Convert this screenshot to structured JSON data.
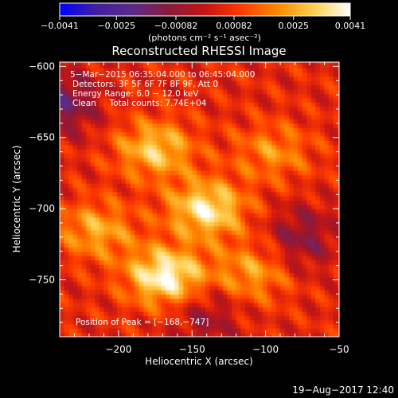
{
  "chart_data": {
    "type": "heatmap",
    "title": "Reconstructed RHESSI Image",
    "xlabel": "Heliocentric X (arcsec)",
    "ylabel": "Heliocentric Y (arcsec)",
    "xlim": [
      -240,
      -50
    ],
    "ylim": [
      -790,
      -597
    ],
    "x_ticks": [
      -200,
      -150,
      -100,
      -50
    ],
    "x_tick_labels": [
      "−200",
      "−150",
      "−100",
      "−50"
    ],
    "y_ticks": [
      -600,
      -650,
      -700,
      -750
    ],
    "y_tick_labels": [
      "−600",
      "−650",
      "−700",
      "−750"
    ],
    "colorbar": {
      "range": [
        -0.0041,
        0.0041
      ],
      "ticks": [
        -0.0041,
        -0.0025,
        -0.00082,
        0.00082,
        0.0025,
        0.0041
      ],
      "tick_labels": [
        "−0.0041",
        "−0.0025",
        "−0.00082",
        "0.00082",
        "0.0025",
        "0.0041"
      ],
      "units": "(photons cm⁻² s⁻¹ asec⁻²)",
      "colormap": [
        "#0000ff",
        "#4020a0",
        "#5a2b8a",
        "#8c1a3a",
        "#c41414",
        "#ff3a00",
        "#ff8800",
        "#ffd050",
        "#ffffff"
      ]
    },
    "annotations": [
      "5−Mar−2015 06:35:04.000 to 06:45:04.000",
      "Detectors: 3F 5F 6F 7F 8F 9F, Att 0",
      "Energy Range: 6.0 − 12.0 keV",
      "Clean     Total counts: 7.74E+04"
    ],
    "peak_label": "Position of Peak = [−168,−747]",
    "peak": [
      -168,
      -747
    ],
    "sources": [
      {
        "x": -168,
        "y": -747,
        "peak": 0.0041
      },
      {
        "x": -140,
        "y": -700,
        "peak": 0.0036
      },
      {
        "x": -175,
        "y": -658,
        "peak": 0.0029
      },
      {
        "x": -215,
        "y": -715,
        "peak": 0.0023
      },
      {
        "x": -110,
        "y": -745,
        "peak": 0.0021
      },
      {
        "x": -95,
        "y": -660,
        "peak": 0.0018
      }
    ],
    "negative_regions": [
      {
        "x": -235,
        "y": -625,
        "value": -0.0012
      },
      {
        "x": -75,
        "y": -720,
        "value": -0.001
      },
      {
        "x": -140,
        "y": -775,
        "value": -0.0008
      }
    ]
  },
  "footer_timestamp": "19−Aug−2017 12:40"
}
